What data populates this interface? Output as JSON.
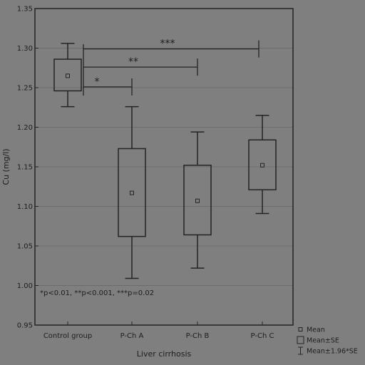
{
  "chart_data": {
    "type": "box",
    "xlabel": "Liver cirrhosis",
    "ylabel": "Cu (mg/l)",
    "ylim": [
      0.95,
      1.35
    ],
    "yticks": [
      0.95,
      1.0,
      1.05,
      1.1,
      1.15,
      1.2,
      1.25,
      1.3,
      1.35
    ],
    "ytick_labels": [
      "0.95",
      "1.00",
      "1.05",
      "1.10",
      "1.15",
      "1.20",
      "1.25",
      "1.30",
      "1.35"
    ],
    "grid": true,
    "categories": [
      "Control group",
      "P-Ch A",
      "P-Ch B",
      "P-Ch C"
    ],
    "groups": [
      {
        "category": "Control group",
        "mean": 1.265,
        "se_low": 1.246,
        "se_high": 1.286,
        "ci_low": 1.226,
        "ci_high": 1.306
      },
      {
        "category": "P-Ch A",
        "mean": 1.117,
        "se_low": 1.062,
        "se_high": 1.173,
        "ci_low": 1.009,
        "ci_high": 1.226
      },
      {
        "category": "P-Ch B",
        "mean": 1.107,
        "se_low": 1.064,
        "se_high": 1.152,
        "ci_low": 1.022,
        "ci_high": 1.194
      },
      {
        "category": "P-Ch C",
        "mean": 1.152,
        "se_low": 1.121,
        "se_high": 1.184,
        "ci_low": 1.091,
        "ci_high": 1.215
      }
    ],
    "significance": [
      {
        "from": "Control group",
        "to": "P-Ch A",
        "label": "*",
        "y": 1.251
      },
      {
        "from": "Control group",
        "to": "P-Ch B",
        "label": "**",
        "y": 1.276
      },
      {
        "from": "Control group",
        "to": "P-Ch C",
        "label": "***",
        "y": 1.299
      }
    ],
    "annotation": "*p<0.01, **p<0.001, ***p=0.02",
    "legend": {
      "placement": "bottom-right",
      "items": [
        {
          "symbol": "point",
          "label": "Mean"
        },
        {
          "symbol": "box",
          "label": "Mean±SE"
        },
        {
          "symbol": "whisker",
          "label": "Mean±1.96*SE"
        }
      ]
    }
  },
  "colors": {
    "background": "#7f7f7f",
    "line": "#242424",
    "grid": "#6c6c6c",
    "text": "#1e1e1e"
  }
}
